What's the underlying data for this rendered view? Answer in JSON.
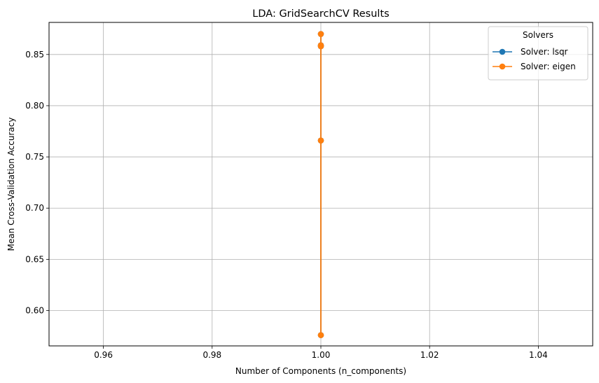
{
  "chart_data": {
    "type": "line",
    "title": "LDA: GridSearchCV Results",
    "xlabel": "Number of Components (n_components)",
    "ylabel": "Mean Cross-Validation Accuracy",
    "xlim": [
      0.95,
      1.05
    ],
    "ylim": [
      0.5655,
      0.8813
    ],
    "xticks": [
      0.96,
      0.98,
      1.0,
      1.02,
      1.04
    ],
    "xtick_labels": [
      "0.96",
      "0.98",
      "1.00",
      "1.02",
      "1.04"
    ],
    "yticks": [
      0.6,
      0.65,
      0.7,
      0.75,
      0.8,
      0.85
    ],
    "ytick_labels": [
      "0.60",
      "0.65",
      "0.70",
      "0.75",
      "0.80",
      "0.85"
    ],
    "grid": true,
    "legend": {
      "title": "Solvers",
      "placement": "top-right"
    },
    "series": [
      {
        "name": "Solver: lsqr",
        "color": "#1f77b4",
        "marker": "circle",
        "x": [
          1.0,
          1.0,
          1.0,
          1.0,
          1.0
        ],
        "y": [
          0.87,
          0.859,
          0.858,
          0.766,
          0.576
        ]
      },
      {
        "name": "Solver: eigen",
        "color": "#ff7f0e",
        "marker": "circle",
        "x": [
          1.0,
          1.0,
          1.0,
          1.0,
          1.0
        ],
        "y": [
          0.87,
          0.859,
          0.858,
          0.766,
          0.576
        ]
      }
    ]
  }
}
